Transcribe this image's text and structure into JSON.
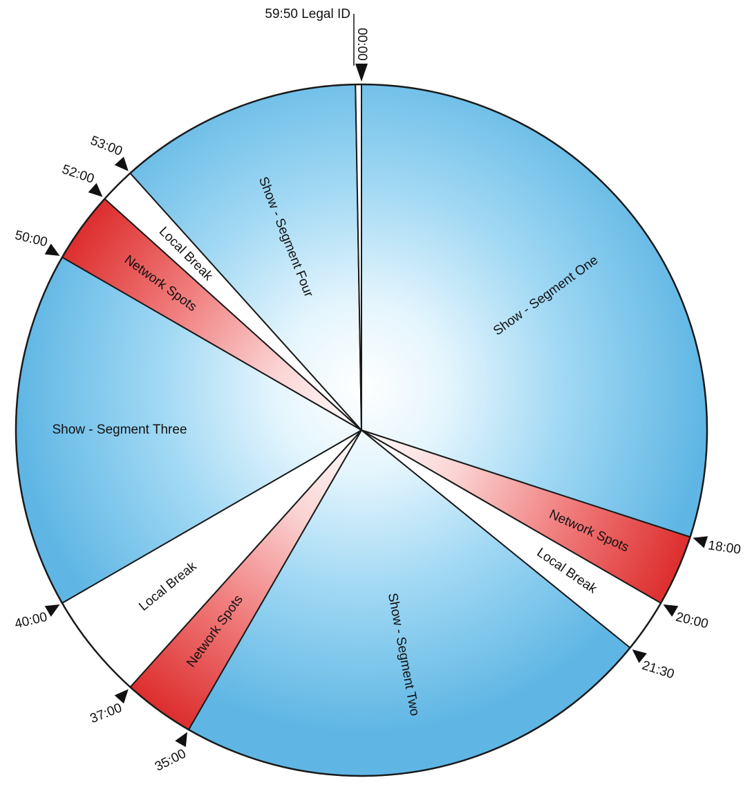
{
  "diagram": {
    "type": "clock",
    "units": "minutes",
    "period": 60,
    "colors": {
      "show": "#62b8e6",
      "network": "#e23a3a",
      "local": "#ffffff",
      "outline": "#1a1a1a"
    },
    "segments": [
      {
        "id": "show-segment-one",
        "label": "Show - Segment One",
        "kind": "show",
        "start": 0,
        "end": 18
      },
      {
        "id": "network-spots-1",
        "label": "Network Spots",
        "kind": "network",
        "start": 18,
        "end": 20
      },
      {
        "id": "local-break-1",
        "label": "Local Break",
        "kind": "local",
        "start": 20,
        "end": 21.5
      },
      {
        "id": "show-segment-two",
        "label": "Show - Segment Two",
        "kind": "show",
        "start": 21.5,
        "end": 35
      },
      {
        "id": "network-spots-2",
        "label": "Network Spots",
        "kind": "network",
        "start": 35,
        "end": 37
      },
      {
        "id": "local-break-2",
        "label": "Local Break",
        "kind": "local",
        "start": 37,
        "end": 40
      },
      {
        "id": "show-segment-three",
        "label": "Show - Segment Three",
        "kind": "show",
        "start": 40,
        "end": 50
      },
      {
        "id": "network-spots-3",
        "label": "Network Spots",
        "kind": "network",
        "start": 50,
        "end": 52
      },
      {
        "id": "local-break-3",
        "label": "Local Break",
        "kind": "local",
        "start": 52,
        "end": 53
      },
      {
        "id": "show-segment-four",
        "label": "Show - Segment Four",
        "kind": "show",
        "start": 53,
        "end": 59.833
      },
      {
        "id": "legal-id",
        "label": "",
        "kind": "local",
        "start": 59.833,
        "end": 60
      }
    ],
    "markers": [
      {
        "id": "t-00-00",
        "label": "00:00",
        "minute": 0
      },
      {
        "id": "t-18-00",
        "label": "18:00",
        "minute": 18
      },
      {
        "id": "t-20-00",
        "label": "20:00",
        "minute": 20
      },
      {
        "id": "t-21-30",
        "label": "21:30",
        "minute": 21.5
      },
      {
        "id": "t-35-00",
        "label": "35:00",
        "minute": 35
      },
      {
        "id": "t-37-00",
        "label": "37:00",
        "minute": 37
      },
      {
        "id": "t-40-00",
        "label": "40:00",
        "minute": 40
      },
      {
        "id": "t-50-00",
        "label": "50:00",
        "minute": 50
      },
      {
        "id": "t-52-00",
        "label": "52:00",
        "minute": 52
      },
      {
        "id": "t-53-00",
        "label": "53:00",
        "minute": 53
      }
    ],
    "legal_id_label": "59:50 Legal ID"
  }
}
